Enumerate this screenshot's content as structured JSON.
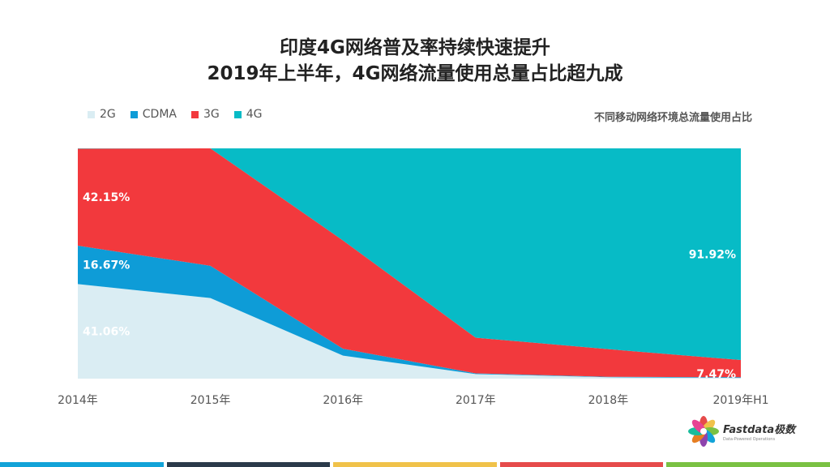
{
  "title_line1": "印度4G网络普及率持续快速提升",
  "title_line2": "2019年上半年，4G网络流量使用总量占比超九成",
  "subtitle": "不同移动网络环境总流量使用占比",
  "logo": {
    "name": "Fastdata极数",
    "tagline": "Data-Powered Operations"
  },
  "bottom_bar_colors": [
    "#12a3d8",
    "#2b3a4a",
    "#f0c24a",
    "#e64b4b",
    "#7ac143"
  ],
  "chart_data": {
    "type": "area",
    "stacked": true,
    "percent": true,
    "categories": [
      "2014年",
      "2015年",
      "2016年",
      "2017年",
      "2018年",
      "2019年H1"
    ],
    "ylim": [
      0,
      100
    ],
    "legend_position": "top-left",
    "series": [
      {
        "name": "2G",
        "color": "#daedf3",
        "values": [
          41.06,
          35,
          10,
          2,
          0.6,
          0.3
        ]
      },
      {
        "name": "CDMA",
        "color": "#0e9cd7",
        "values": [
          16.67,
          14,
          3,
          0.3,
          0.2,
          0.31
        ]
      },
      {
        "name": "3G",
        "color": "#f2393d",
        "values": [
          42.15,
          51,
          47,
          15.5,
          12,
          7.47
        ]
      },
      {
        "name": "4G",
        "color": "#07bbc6",
        "values": [
          0.12,
          0,
          40,
          82.2,
          87.2,
          91.92
        ]
      }
    ],
    "data_labels": [
      {
        "series": "2G",
        "index": 0,
        "text": "41.06%"
      },
      {
        "series": "CDMA",
        "index": 0,
        "text": "16.67%"
      },
      {
        "series": "3G",
        "index": 0,
        "text": "42.15%"
      },
      {
        "series": "4G",
        "index": 5,
        "text": "91.92%"
      },
      {
        "series": "3G",
        "index": 5,
        "text": "7.47%"
      }
    ]
  }
}
